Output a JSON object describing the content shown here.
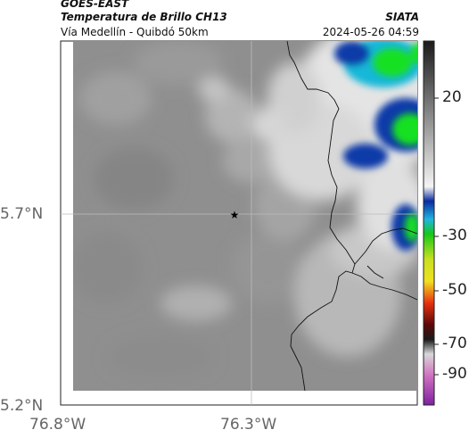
{
  "header": {
    "satellite": "GOES-EAST",
    "product": "Temperatura de Brillo CH13",
    "region": "Vía Medellín - Quibdó 50km",
    "organization": "SIATA",
    "datetime": "2024-05-26 04:59"
  },
  "map": {
    "x_ticks": [
      "76.8°W",
      "76.3°W"
    ],
    "y_ticks": [
      "5.7°N",
      "5.2°N"
    ],
    "marker_icon": "star-icon",
    "grid": true
  },
  "colorbar": {
    "ticks": [
      "20",
      "-30",
      "-50",
      "-70",
      "-90"
    ]
  },
  "colors": {
    "background_gray": "#8f8f8f",
    "cold_cloud_light": "#e8e8e8",
    "cyan": "#14c8d8",
    "blue": "#0a3aa8",
    "green": "#18e020"
  }
}
